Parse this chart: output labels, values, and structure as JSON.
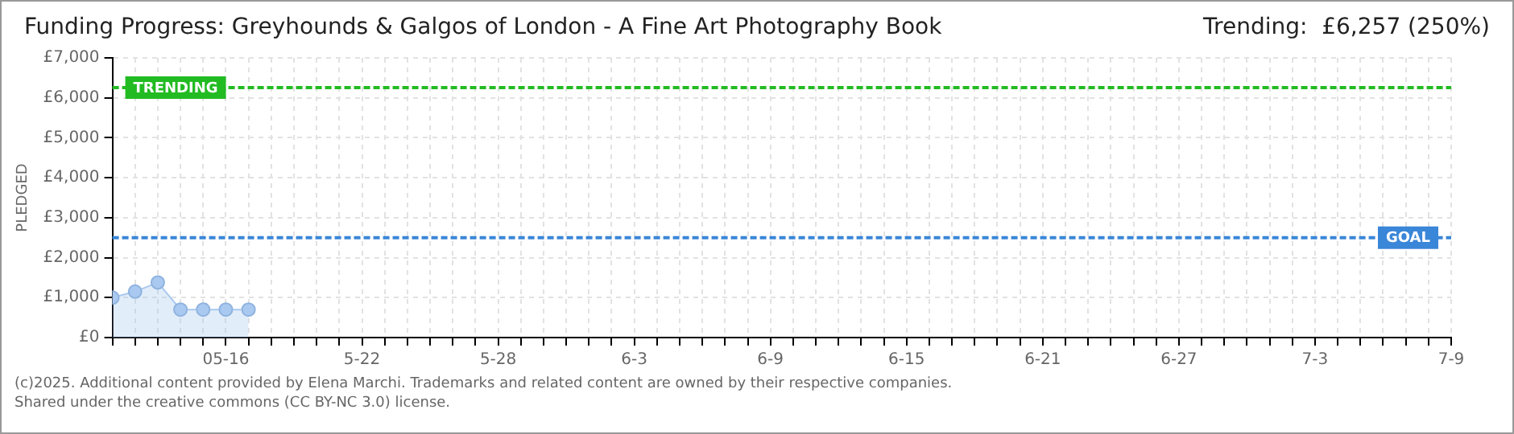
{
  "chart_data": {
    "type": "area",
    "title": "Funding Progress: Greyhounds & Galgos of London - A Fine Art Photography Book",
    "subtitle": "Trending:  £6,257 (250%)",
    "ylabel": "PLEDGED",
    "x": [
      "--05-11",
      "--05-12",
      "--05-13",
      "--05-14",
      "--05-15",
      "--05-16",
      "--05-17"
    ],
    "series": [
      {
        "color": "#a9c9f0",
        "values": [
          1000,
          1150,
          1380,
          700,
          700,
          700,
          700
        ]
      }
    ],
    "xlim": [
      "--05-11",
      "--07-09"
    ],
    "xticks": [
      {
        "value": "--05-11",
        "label": null
      },
      {
        "value": "--05-12",
        "label": null
      },
      {
        "value": "--05-13",
        "label": null
      },
      {
        "value": "--05-14",
        "label": null
      },
      {
        "value": "--05-15",
        "label": null
      },
      {
        "value": "--05-16",
        "label": "05-16"
      },
      {
        "value": "--05-17",
        "label": null
      },
      {
        "value": "--05-18",
        "label": null
      },
      {
        "value": "--05-19",
        "label": null
      },
      {
        "value": "--05-20",
        "label": null
      },
      {
        "value": "--05-21",
        "label": null
      },
      {
        "value": "--05-22",
        "label": "5-22"
      },
      {
        "value": "--05-23",
        "label": null
      },
      {
        "value": "--05-24",
        "label": null
      },
      {
        "value": "--05-25",
        "label": null
      },
      {
        "value": "--05-26",
        "label": null
      },
      {
        "value": "--05-27",
        "label": null
      },
      {
        "value": "--05-28",
        "label": "5-28"
      },
      {
        "value": "--05-29",
        "label": null
      },
      {
        "value": "--05-30",
        "label": null
      },
      {
        "value": "--05-31",
        "label": null
      },
      {
        "value": "--06-01",
        "label": null
      },
      {
        "value": "--06-02",
        "label": null
      },
      {
        "value": "--06-03",
        "label": "6-3"
      },
      {
        "value": "--06-04",
        "label": null
      },
      {
        "value": "--06-05",
        "label": null
      },
      {
        "value": "--06-06",
        "label": null
      },
      {
        "value": "--06-07",
        "label": null
      },
      {
        "value": "--06-08",
        "label": null
      },
      {
        "value": "--06-09",
        "label": "6-9"
      },
      {
        "value": "--06-10",
        "label": null
      },
      {
        "value": "--06-11",
        "label": null
      },
      {
        "value": "--06-12",
        "label": null
      },
      {
        "value": "--06-13",
        "label": null
      },
      {
        "value": "--06-14",
        "label": null
      },
      {
        "value": "--06-15",
        "label": "6-15"
      },
      {
        "value": "--06-16",
        "label": null
      },
      {
        "value": "--06-17",
        "label": null
      },
      {
        "value": "--06-18",
        "label": null
      },
      {
        "value": "--06-19",
        "label": null
      },
      {
        "value": "--06-20",
        "label": null
      },
      {
        "value": "--06-21",
        "label": "6-21"
      },
      {
        "value": "--06-22",
        "label": null
      },
      {
        "value": "--06-23",
        "label": null
      },
      {
        "value": "--06-24",
        "label": null
      },
      {
        "value": "--06-25",
        "label": null
      },
      {
        "value": "--06-26",
        "label": null
      },
      {
        "value": "--06-27",
        "label": "6-27"
      },
      {
        "value": "--06-28",
        "label": null
      },
      {
        "value": "--06-29",
        "label": null
      },
      {
        "value": "--06-30",
        "label": null
      },
      {
        "value": "--07-01",
        "label": null
      },
      {
        "value": "--07-02",
        "label": null
      },
      {
        "value": "--07-03",
        "label": "7-3"
      },
      {
        "value": "--07-04",
        "label": null
      },
      {
        "value": "--07-05",
        "label": null
      },
      {
        "value": "--07-06",
        "label": null
      },
      {
        "value": "--07-07",
        "label": null
      },
      {
        "value": "--07-08",
        "label": null
      },
      {
        "value": "--07-09",
        "label": "7-9"
      }
    ],
    "ylim": [
      0,
      7000
    ],
    "yticks": [
      {
        "value": 0,
        "label": "£0"
      },
      {
        "value": 1000,
        "label": "£1,000"
      },
      {
        "value": 2000,
        "label": "£2,000"
      },
      {
        "value": 3000,
        "label": "£3,000"
      },
      {
        "value": 4000,
        "label": "£4,000"
      },
      {
        "value": 5000,
        "label": "£5,000"
      },
      {
        "value": 6000,
        "label": "£6,000"
      },
      {
        "value": 7000,
        "label": "£7,000"
      }
    ],
    "ref_lines": [
      {
        "axis": "y",
        "value": 6257,
        "label": "TRENDING",
        "color": "#22bb22",
        "line_style": "dashed"
      },
      {
        "axis": "y",
        "value": 2500,
        "label": "GOAL",
        "color": "#3a86d8",
        "line_style": "dashed"
      }
    ],
    "grid": true,
    "marker": "circle",
    "legend": false,
    "annotations": [
      "(c)2025. Additional content provided by Elena Marchi. Trademarks and related content are owned by their respective companies.",
      "Shared under the creative commons (CC BY-NC 3.0) license."
    ]
  }
}
